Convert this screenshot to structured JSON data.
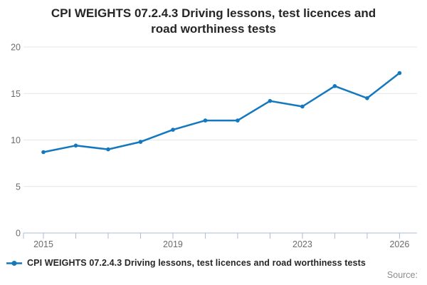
{
  "title": "CPI WEIGHTS 07.2.4.3 Driving lessons, test licences and road worthiness tests",
  "source_label": "Source:",
  "legend": {
    "label": "CPI WEIGHTS 07.2.4.3 Driving lessons, test licences and road worthiness tests"
  },
  "colors": {
    "series": "#1478be",
    "grid": "#e6e6e6",
    "axis": "#aebdd3",
    "tick_label": "#6b6b6b",
    "title_text": "#262626",
    "legend_text": "#262626",
    "source_text": "#8c8c8c"
  },
  "chart_data": {
    "type": "line",
    "x": [
      2015,
      2016,
      2017,
      2018,
      2019,
      2020,
      2021,
      2022,
      2023,
      2024,
      2025,
      2026
    ],
    "series": [
      {
        "name": "CPI WEIGHTS 07.2.4.3 Driving lessons, test licences and road worthiness tests",
        "values": [
          8.7,
          9.4,
          9.0,
          9.8,
          11.1,
          12.1,
          12.1,
          14.2,
          13.6,
          15.8,
          14.5,
          17.2
        ]
      }
    ],
    "title": "CPI WEIGHTS 07.2.4.3 Driving lessons, test licences and road worthiness tests",
    "xlabel": "",
    "ylabel": "",
    "ylim": [
      0,
      20
    ],
    "yticks": [
      0,
      5,
      10,
      15,
      20
    ],
    "xticks_labeled": [
      2015,
      2019,
      2023,
      2026
    ],
    "grid": "horizontal",
    "legend_position": "bottom-left"
  }
}
